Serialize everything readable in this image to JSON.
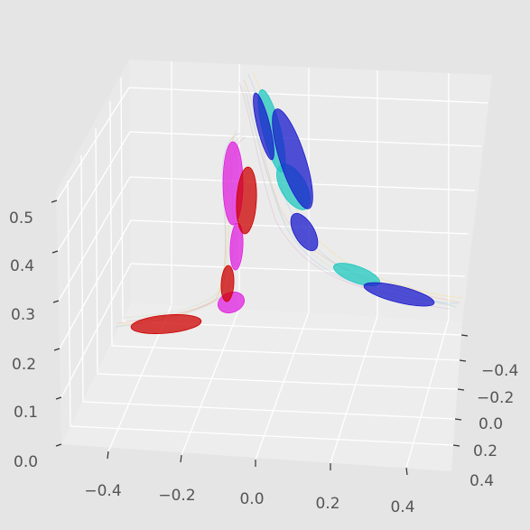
{
  "chart_data": {
    "type": "scatter",
    "title": "",
    "xlabel": "",
    "ylabel": "",
    "zlabel": "",
    "projection": "3d",
    "grid": true,
    "background": "#e5e5e5",
    "pane_color": "#ebebeb",
    "x_ticks": [
      "−0.4",
      "−0.2",
      "0.0",
      "0.2",
      "0.4"
    ],
    "y_ticks": [
      "−0.4",
      "−0.2",
      "0.0",
      "0.2",
      "0.4"
    ],
    "z_ticks": [
      "0.0",
      "0.1",
      "0.2",
      "0.3",
      "0.4",
      "0.5"
    ],
    "xlim": [
      -0.5,
      0.5
    ],
    "ylim": [
      -0.5,
      0.5
    ],
    "zlim": [
      0.0,
      0.55
    ],
    "trajectory_colors": [
      "#f4b183",
      "#9dc3e6",
      "#c5e0b4",
      "#ffd966",
      "#d9a6c8"
    ],
    "series": [
      {
        "color": "#cc0000",
        "ellipses": [
          {
            "x": -0.27,
            "y": 0.0,
            "z": 0.2
          },
          {
            "x": -0.03,
            "y": 0.05,
            "z": 0.33
          },
          {
            "x": -0.02,
            "y": 0.1,
            "z": 0.45
          }
        ]
      },
      {
        "color": "#e020e0",
        "ellipses": [
          {
            "x": -0.02,
            "y": 0.0,
            "z": 0.3
          },
          {
            "x": -0.03,
            "y": 0.02,
            "z": 0.38
          },
          {
            "x": -0.05,
            "y": 0.03,
            "z": 0.48
          }
        ]
      },
      {
        "color": "#20c8c0",
        "ellipses": [
          {
            "x": 0.08,
            "y": -0.02,
            "z": 0.48
          },
          {
            "x": 0.13,
            "y": -0.01,
            "z": 0.42
          },
          {
            "x": 0.22,
            "y": 0.02,
            "z": 0.31
          }
        ]
      },
      {
        "color": "#1a1acc",
        "ellipses": [
          {
            "x": 0.05,
            "y": -0.05,
            "z": 0.52
          },
          {
            "x": 0.12,
            "y": -0.02,
            "z": 0.47
          },
          {
            "x": 0.14,
            "y": -0.01,
            "z": 0.37
          },
          {
            "x": 0.27,
            "y": 0.02,
            "z": 0.28
          }
        ]
      }
    ]
  }
}
